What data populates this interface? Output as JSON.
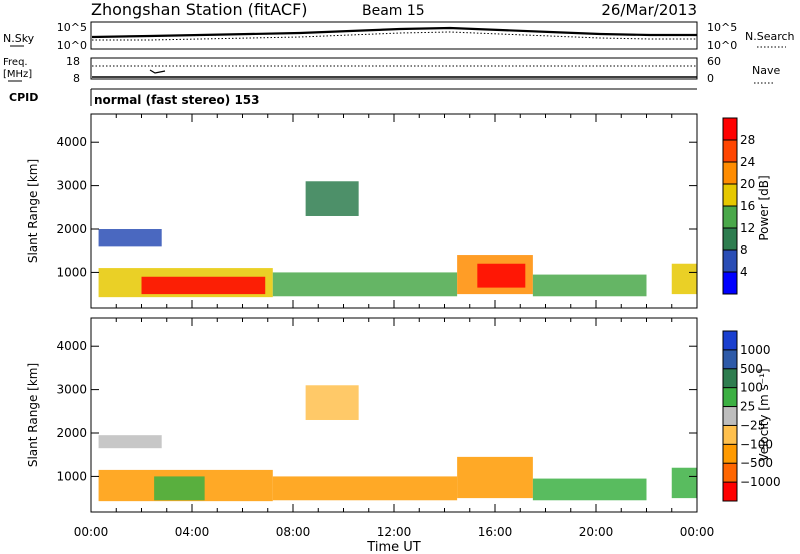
{
  "header": {
    "station": "Zhongshan Station (fitACF)",
    "beam": "Beam 15",
    "date": "26/Mar/2013"
  },
  "noise_panel": {
    "left_label": "N.Sky",
    "left_ticks": [
      "10^5",
      "10^0"
    ],
    "right_ticks": [
      "10^5",
      "10^0"
    ],
    "right_label": "N.Search"
  },
  "freq_panel": {
    "left_label_1": "Freq.",
    "left_label_2": "[MHz]",
    "left_ticks": [
      "18",
      "8"
    ],
    "right_ticks": [
      "60",
      "0"
    ],
    "right_label": "Nave"
  },
  "cpid_panel": {
    "label": "CPID",
    "mode": "normal (fast stereo) 153"
  },
  "power_colorbar": {
    "label": "Power [dB]",
    "ticks": [
      "4",
      "8",
      "12",
      "16",
      "20",
      "24",
      "28"
    ],
    "colors": [
      "#0000ff",
      "#2a4db5",
      "#2e7d4f",
      "#4aa84a",
      "#e6c800",
      "#ff8c00",
      "#ff4500",
      "#ff0000"
    ]
  },
  "velocity_colorbar": {
    "label": "Velocity [m s⁻¹]",
    "ticks": [
      "1000",
      "500",
      "100",
      "25",
      "−25",
      "−100",
      "−500",
      "−1000"
    ],
    "colors": [
      "#1a3fcf",
      "#2e5aa8",
      "#2e7d4f",
      "#3cb043",
      "#bdbdbd",
      "#ffc04d",
      "#ff9a00",
      "#ff6600",
      "#ff0000"
    ]
  },
  "chart_data": [
    {
      "type": "heatmap",
      "title": "",
      "xlabel": "",
      "ylabel": "Slant Range [km]",
      "x_ticks": [
        "00:00",
        "04:00",
        "08:00",
        "12:00",
        "16:00",
        "20:00",
        "00:00"
      ],
      "y_ticks": [
        "1000",
        "2000",
        "3000",
        "4000"
      ],
      "xlim": [
        0,
        24
      ],
      "ylim": [
        180,
        4650
      ],
      "color_variable": "Power [dB]",
      "regions": [
        {
          "t0": 0.3,
          "t1": 7.2,
          "r0": 430,
          "r1": 1100,
          "value": 18
        },
        {
          "t0": 2.0,
          "t1": 6.9,
          "r0": 500,
          "r1": 900,
          "value": 28
        },
        {
          "t0": 7.2,
          "t1": 14.5,
          "r0": 450,
          "r1": 1000,
          "value": 14
        },
        {
          "t0": 14.5,
          "t1": 17.5,
          "r0": 500,
          "r1": 1400,
          "value": 20
        },
        {
          "t0": 15.3,
          "t1": 17.2,
          "r0": 650,
          "r1": 1200,
          "value": 28
        },
        {
          "t0": 17.5,
          "t1": 22.0,
          "r0": 450,
          "r1": 950,
          "value": 12
        },
        {
          "t0": 23.0,
          "t1": 24.0,
          "r0": 500,
          "r1": 1200,
          "value": 16
        },
        {
          "t0": 0.3,
          "t1": 2.8,
          "r0": 1600,
          "r1": 2000,
          "value": 6
        },
        {
          "t0": 8.5,
          "t1": 10.6,
          "r0": 2300,
          "r1": 3100,
          "value": 8
        }
      ]
    },
    {
      "type": "heatmap",
      "title": "",
      "xlabel": "Time UT",
      "ylabel": "Slant Range [km]",
      "x_ticks": [
        "00:00",
        "04:00",
        "08:00",
        "12:00",
        "16:00",
        "20:00",
        "00:00"
      ],
      "y_ticks": [
        "1000",
        "2000",
        "3000",
        "4000"
      ],
      "xlim": [
        0,
        24
      ],
      "ylim": [
        180,
        4650
      ],
      "color_variable": "Velocity [m s⁻¹]",
      "regions": [
        {
          "t0": 0.3,
          "t1": 7.2,
          "r0": 430,
          "r1": 1150,
          "value": -200
        },
        {
          "t0": 2.5,
          "t1": 4.5,
          "r0": 450,
          "r1": 1000,
          "value": 60
        },
        {
          "t0": 7.2,
          "t1": 14.5,
          "r0": 450,
          "r1": 1000,
          "value": -150
        },
        {
          "t0": 14.5,
          "t1": 17.5,
          "r0": 500,
          "r1": 1450,
          "value": -120
        },
        {
          "t0": 17.5,
          "t1": 22.0,
          "r0": 450,
          "r1": 950,
          "value": 40
        },
        {
          "t0": 23.0,
          "t1": 24.0,
          "r0": 500,
          "r1": 1200,
          "value": 50
        },
        {
          "t0": 0.3,
          "t1": 2.8,
          "r0": 1650,
          "r1": 1950,
          "value": 0
        },
        {
          "t0": 8.5,
          "t1": 10.6,
          "r0": 2300,
          "r1": 3100,
          "value": -40
        }
      ]
    }
  ]
}
